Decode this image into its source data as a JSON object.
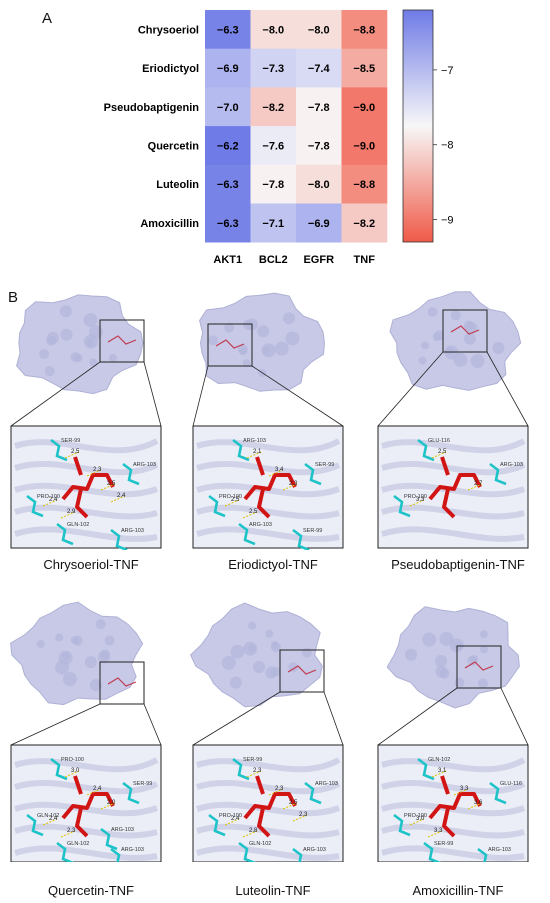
{
  "panel_a_label": "A",
  "panel_b_label": "B",
  "chart_data": {
    "type": "heatmap",
    "rows": [
      "Chrysoeriol",
      "Eriodictyol",
      "Pseudobaptigenin",
      "Quercetin",
      "Luteolin",
      "Amoxicillin"
    ],
    "columns": [
      "AKT1",
      "BCL2",
      "EGFR",
      "TNF"
    ],
    "values": [
      [
        -6.3,
        -8.0,
        -8.0,
        -8.8
      ],
      [
        -6.9,
        -7.3,
        -7.4,
        -8.5
      ],
      [
        -7.0,
        -8.2,
        -7.8,
        -9.0
      ],
      [
        -6.2,
        -7.6,
        -7.8,
        -9.0
      ],
      [
        -6.3,
        -7.8,
        -8.0,
        -8.8
      ],
      [
        -6.3,
        -7.1,
        -6.9,
        -8.2
      ]
    ],
    "value_labels": [
      [
        "−6.3",
        "−8.0",
        "−8.0",
        "−8.8"
      ],
      [
        "−6.9",
        "−7.3",
        "−7.4",
        "−8.5"
      ],
      [
        "−7.0",
        "−8.2",
        "−7.8",
        "−9.0"
      ],
      [
        "−6.2",
        "−7.6",
        "−7.8",
        "−9.0"
      ],
      [
        "−6.3",
        "−7.8",
        "−8.0",
        "−8.8"
      ],
      [
        "−6.3",
        "−7.1",
        "−6.9",
        "−8.2"
      ]
    ],
    "colorbar": {
      "range": [
        -9.3,
        -6.2
      ],
      "ticks": [
        -7,
        -8,
        -9
      ],
      "tick_labels": [
        "−7",
        "−8",
        "−9"
      ],
      "color_high": "#6f7be6",
      "color_mid": "#f7f7f7",
      "color_low": "#ef5a48"
    }
  },
  "panel_b": {
    "complexes": [
      {
        "caption": "Chrysoeriol-TNF",
        "residues": [
          "SER-99",
          "ARG-103",
          "PRO-100",
          "GLN-102",
          "ARG-103"
        ],
        "distances": [
          "2.5",
          "2.5",
          "2.4",
          "2.9",
          "2.3",
          "2.4"
        ]
      },
      {
        "caption": "Eriodictyol-TNF",
        "residues": [
          "ARG-103",
          "SER-99",
          "PRO-100",
          "ARG-103",
          "SER-99"
        ],
        "distances": [
          "2.1",
          "2.3",
          "2.5",
          "2.5",
          "3.4"
        ]
      },
      {
        "caption": "Pseudobaptigenin-TNF",
        "residues": [
          "GLU-116",
          "ARG-103",
          "PRO-100"
        ],
        "distances": [
          "2.5",
          "2.7",
          "3.3"
        ]
      },
      {
        "caption": "Quercetin-TNF",
        "residues": [
          "PRO-100",
          "SER-99",
          "GLN-102",
          "GLN-102",
          "ARG-103",
          "ARG-103"
        ],
        "distances": [
          "3.0",
          "2.0",
          "2.4",
          "2.3",
          "2.4"
        ]
      },
      {
        "caption": "Luteolin-TNF",
        "residues": [
          "SER-99",
          "ARG-103",
          "PRO-100",
          "GLN-102",
          "ARG-103"
        ],
        "distances": [
          "2.3",
          "2.5",
          "2.4",
          "2.8",
          "2.3",
          "2.3"
        ]
      },
      {
        "caption": "Amoxicillin-TNF",
        "residues": [
          "GLN-102",
          "GLU-116",
          "PRO-100",
          "SER-99",
          "ARG-103"
        ],
        "distances": [
          "3.1",
          "3.6",
          "3.0",
          "3.3",
          "3.3"
        ]
      }
    ]
  }
}
